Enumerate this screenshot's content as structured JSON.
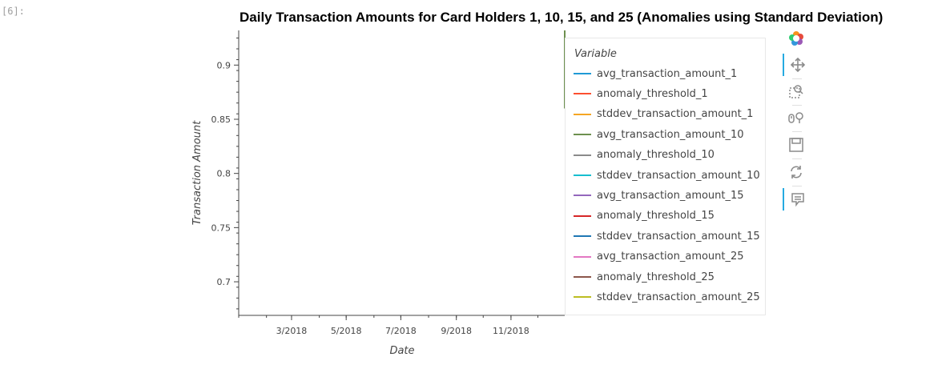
{
  "cell_prompt": "[6]:",
  "chart_data": {
    "type": "line",
    "title": "Daily Transaction Amounts for Card Holders 1, 10, 15, and 25 (Anomalies using Standard Deviation)",
    "xlabel": "Date",
    "ylabel": "Transaction Amount",
    "x_ticks": [
      "3/2018",
      "5/2018",
      "7/2018",
      "9/2018",
      "11/2018"
    ],
    "x_range": [
      "2018-01-01",
      "2018-12-31"
    ],
    "y_ticks": [
      0.7,
      0.75,
      0.8,
      0.85,
      0.9
    ],
    "y_tick_labels": [
      "0.7",
      "0.75",
      "0.8",
      "0.85",
      "0.9"
    ],
    "ylim": [
      0.669,
      0.932
    ],
    "grid": false,
    "legend_title": "Variable",
    "legend_position": "right",
    "series": [
      {
        "name": "avg_transaction_amount_1",
        "color": "#1f9ad6",
        "points": []
      },
      {
        "name": "anomaly_threshold_1",
        "color": "#fc4f30",
        "points": []
      },
      {
        "name": "stddev_transaction_amount_1",
        "color": "#f5a623",
        "points": []
      },
      {
        "name": "avg_transaction_amount_10",
        "color": "#6d904f",
        "points": [
          {
            "x": "2018-12-31",
            "y": 0.86
          },
          {
            "x": "2018-12-31",
            "y": 0.932
          }
        ]
      },
      {
        "name": "anomaly_threshold_10",
        "color": "#8b8b8b",
        "points": []
      },
      {
        "name": "stddev_transaction_amount_10",
        "color": "#17becf",
        "points": []
      },
      {
        "name": "avg_transaction_amount_15",
        "color": "#9467bd",
        "points": []
      },
      {
        "name": "anomaly_threshold_15",
        "color": "#d62728",
        "points": []
      },
      {
        "name": "stddev_transaction_amount_15",
        "color": "#1f77b4",
        "points": []
      },
      {
        "name": "avg_transaction_amount_25",
        "color": "#e377c2",
        "points": []
      },
      {
        "name": "anomaly_threshold_25",
        "color": "#8c564b",
        "points": []
      },
      {
        "name": "stddev_transaction_amount_25",
        "color": "#bcbd22",
        "points": []
      }
    ]
  },
  "toolbar": [
    {
      "name": "bokeh-logo-icon"
    },
    {
      "name": "pan-tool-icon",
      "active": true
    },
    {
      "name": "box-zoom-tool-icon",
      "active": false
    },
    {
      "name": "wheel-zoom-tool-icon",
      "active": false
    },
    {
      "name": "save-tool-icon",
      "active": false
    },
    {
      "name": "reset-tool-icon",
      "active": false
    },
    {
      "name": "hover-tool-icon",
      "active": true
    }
  ]
}
